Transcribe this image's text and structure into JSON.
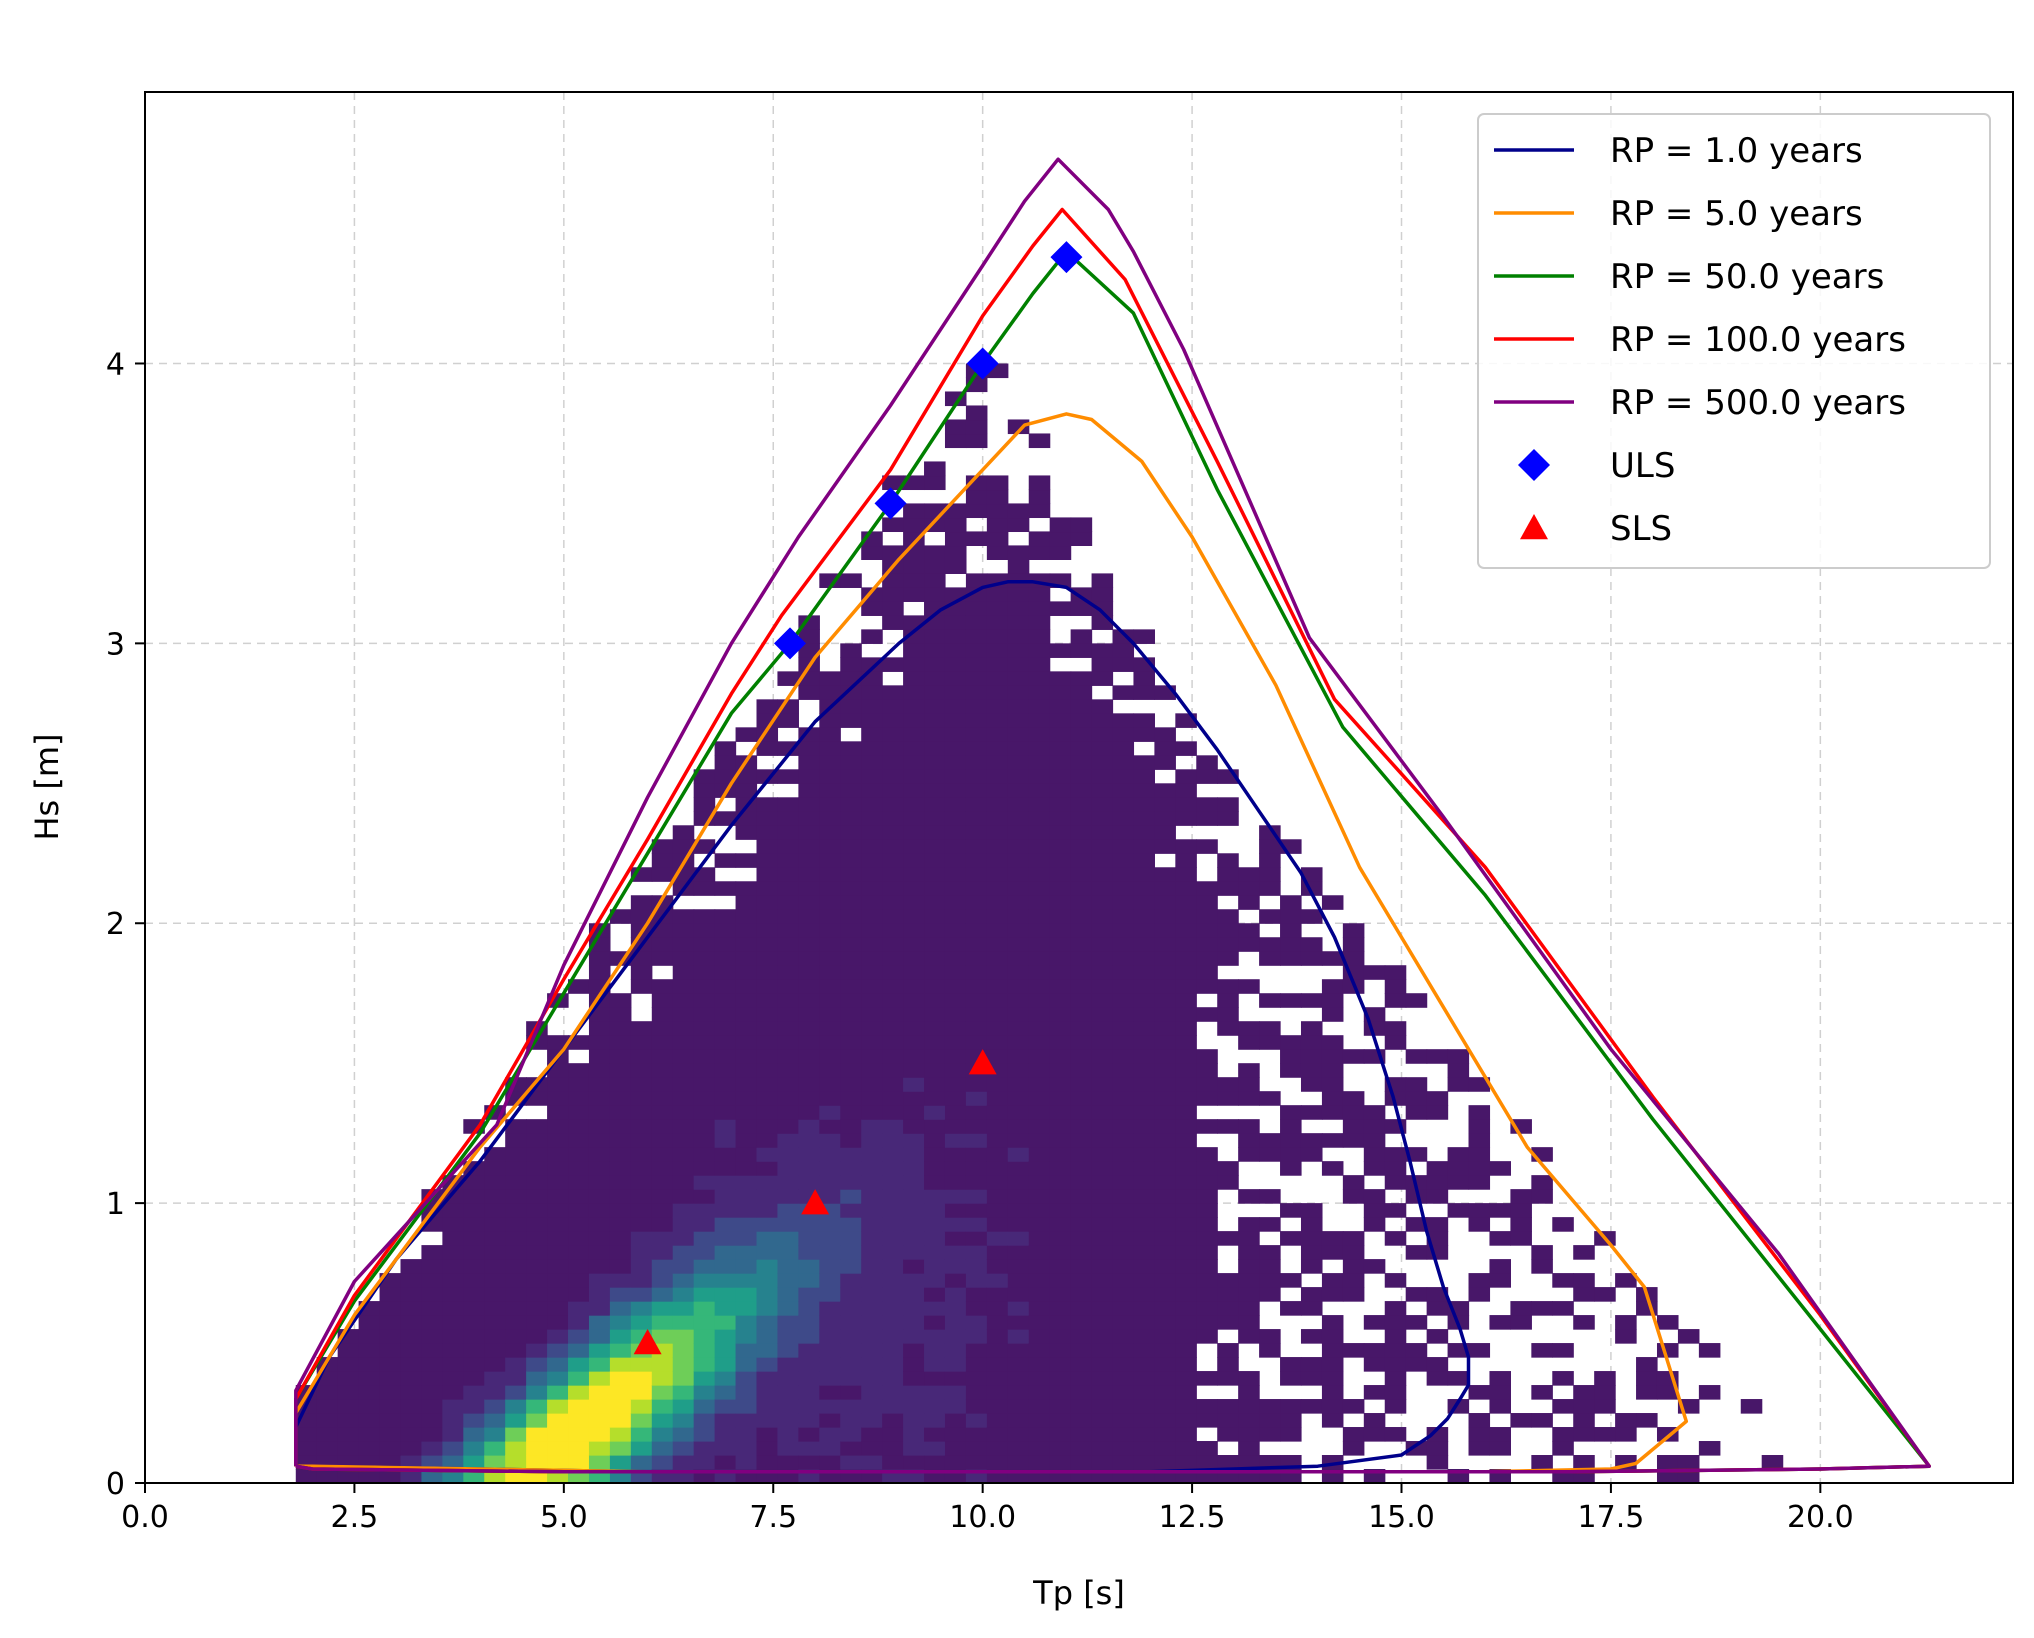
{
  "chart_data": {
    "type": "scatter",
    "title": "",
    "xlabel": "Tp [s]",
    "ylabel": "Hs [m]",
    "xlim": [
      0.0,
      22.3
    ],
    "ylim": [
      0.0,
      4.97
    ],
    "xticks": [
      "0.0",
      "2.5",
      "5.0",
      "7.5",
      "10.0",
      "12.5",
      "15.0",
      "17.5",
      "20.0"
    ],
    "yticks": [
      "0",
      "1",
      "2",
      "3",
      "4"
    ],
    "grid": true,
    "legend_position": "top-right",
    "density_background": {
      "description": "2D histogram of Tp-Hs observations (viridis colormap)",
      "tp_range": [
        1.8,
        21.3
      ],
      "hs_range": [
        0.0,
        4.1
      ],
      "peak": {
        "tp": 5.1,
        "hs": 0.2
      }
    },
    "series": [
      {
        "name": "RP = 1.0 years",
        "kind": "contour",
        "color": "#00008b",
        "x": [
          1.8,
          1.8,
          2.2,
          3.0,
          4.0,
          5.0,
          6.0,
          7.0,
          8.0,
          9.0,
          9.5,
          10.0,
          10.3,
          10.6,
          11.0,
          11.4,
          11.8,
          12.3,
          12.8,
          13.3,
          13.8,
          14.2,
          14.6,
          14.9,
          15.1,
          15.3,
          15.5,
          15.7,
          15.8,
          15.8,
          15.8,
          15.7,
          15.55,
          15.35,
          15.0,
          14.0,
          13.0,
          12.0,
          10.0,
          8.0,
          6.0,
          4.0,
          2.0,
          1.8
        ],
        "y": [
          0.06,
          0.2,
          0.45,
          0.8,
          1.15,
          1.55,
          1.95,
          2.35,
          2.72,
          3.0,
          3.12,
          3.2,
          3.22,
          3.22,
          3.2,
          3.12,
          3.0,
          2.82,
          2.62,
          2.4,
          2.18,
          1.95,
          1.66,
          1.38,
          1.15,
          0.9,
          0.7,
          0.55,
          0.45,
          0.4,
          0.35,
          0.3,
          0.23,
          0.17,
          0.1,
          0.06,
          0.05,
          0.04,
          0.04,
          0.04,
          0.04,
          0.05,
          0.06,
          0.06
        ]
      },
      {
        "name": "RP = 5.0 years",
        "kind": "contour",
        "color": "#ff8c00",
        "x": [
          1.8,
          1.8,
          2.5,
          4.0,
          5.0,
          6.0,
          7.0,
          8.0,
          9.0,
          10.0,
          10.5,
          11.0,
          11.3,
          11.9,
          12.5,
          13.5,
          14.5,
          15.5,
          16.5,
          17.5,
          17.9,
          18.4,
          18.2,
          17.8,
          17.5,
          16.0,
          14.0,
          12.0,
          10.0,
          8.0,
          6.0,
          4.0,
          2.0,
          1.8
        ],
        "y": [
          0.06,
          0.25,
          0.6,
          1.2,
          1.55,
          2.0,
          2.5,
          2.95,
          3.3,
          3.62,
          3.78,
          3.82,
          3.8,
          3.65,
          3.38,
          2.85,
          2.2,
          1.7,
          1.2,
          0.85,
          0.7,
          0.22,
          0.17,
          0.07,
          0.05,
          0.04,
          0.04,
          0.04,
          0.04,
          0.04,
          0.04,
          0.05,
          0.06,
          0.06
        ]
      },
      {
        "name": "RP = 50.0 years",
        "kind": "contour",
        "color": "#008000",
        "x": [
          1.8,
          1.8,
          2.5,
          4.0,
          5.0,
          6.0,
          7.0,
          7.7,
          8.9,
          10.0,
          10.6,
          11.0,
          11.8,
          12.8,
          14.3,
          16.0,
          18.0,
          20.0,
          21.3,
          20.0,
          17.0,
          14.0,
          11.0,
          8.0,
          5.0,
          2.0,
          1.8
        ],
        "y": [
          0.06,
          0.3,
          0.65,
          1.25,
          1.75,
          2.25,
          2.75,
          3.0,
          3.5,
          4.0,
          4.25,
          4.4,
          4.18,
          3.55,
          2.7,
          2.1,
          1.3,
          0.55,
          0.06,
          0.05,
          0.04,
          0.04,
          0.04,
          0.04,
          0.04,
          0.05,
          0.06
        ]
      },
      {
        "name": "RP = 100.0 years",
        "kind": "contour",
        "color": "#ff0000",
        "x": [
          1.8,
          1.8,
          2.5,
          4.0,
          5.0,
          6.0,
          7.0,
          7.6,
          8.9,
          10.0,
          10.6,
          10.95,
          11.7,
          12.8,
          14.2,
          16.0,
          18.0,
          20.0,
          21.3,
          20.0,
          17.0,
          14.0,
          11.0,
          8.0,
          5.0,
          2.0,
          1.8
        ],
        "y": [
          0.06,
          0.3,
          0.67,
          1.28,
          1.8,
          2.3,
          2.82,
          3.1,
          3.62,
          4.17,
          4.42,
          4.55,
          4.3,
          3.65,
          2.8,
          2.2,
          1.38,
          0.6,
          0.06,
          0.05,
          0.04,
          0.04,
          0.04,
          0.04,
          0.04,
          0.05,
          0.06
        ]
      },
      {
        "name": "RP = 500.0 years",
        "kind": "contour",
        "color": "#800080",
        "x": [
          1.8,
          1.8,
          2.5,
          4.2,
          5.0,
          6.0,
          7.0,
          7.8,
          8.9,
          10.0,
          10.5,
          10.9,
          11.5,
          11.8,
          12.4,
          13.9,
          15.5,
          17.5,
          19.5,
          21.3,
          20.0,
          17.0,
          14.0,
          11.0,
          8.0,
          5.0,
          2.0,
          1.8
        ],
        "y": [
          0.06,
          0.33,
          0.72,
          1.28,
          1.85,
          2.45,
          3.0,
          3.38,
          3.85,
          4.35,
          4.58,
          4.73,
          4.55,
          4.4,
          4.05,
          3.02,
          2.38,
          1.55,
          0.82,
          0.06,
          0.05,
          0.04,
          0.04,
          0.04,
          0.04,
          0.04,
          0.05,
          0.06
        ]
      },
      {
        "name": "ULS",
        "kind": "marker",
        "marker": "diamond",
        "color": "#0000ff",
        "x": [
          7.7,
          8.9,
          10.0,
          11.0
        ],
        "y": [
          3.0,
          3.5,
          4.0,
          4.38
        ]
      },
      {
        "name": "SLS",
        "kind": "marker",
        "marker": "triangle",
        "color": "#ff0000",
        "x": [
          6.0,
          8.0,
          10.0
        ],
        "y": [
          0.5,
          1.0,
          1.5
        ]
      }
    ]
  }
}
